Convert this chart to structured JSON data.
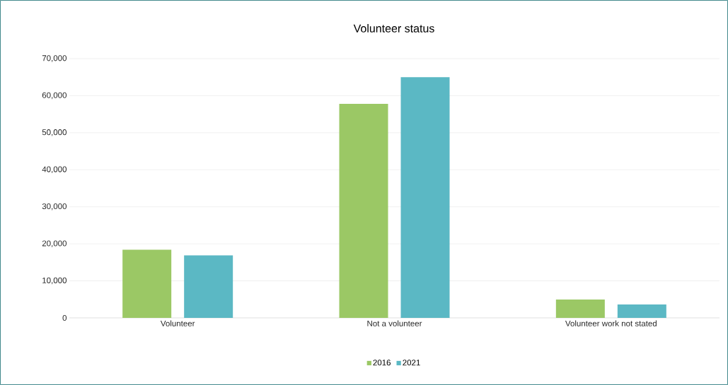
{
  "chart_data": {
    "type": "bar",
    "title": "Volunteer status",
    "categories": [
      "Volunteer",
      "Not a volunteer",
      "Volunteer work not stated"
    ],
    "series": [
      {
        "name": "2016",
        "color": "#9bc865",
        "values": [
          18400,
          57800,
          4950
        ]
      },
      {
        "name": "2021",
        "color": "#5bb8c4",
        "values": [
          16900,
          65000,
          3600
        ]
      }
    ],
    "ylim": [
      0,
      70000
    ],
    "yticks": [
      0,
      {
        "value": 10000,
        "label": "10,000"
      },
      {
        "value": 20000,
        "label": "20,000"
      },
      {
        "value": 30000,
        "label": "30,000"
      },
      {
        "value": 40000,
        "label": "40,000"
      },
      {
        "value": 50000,
        "label": "50,000"
      },
      {
        "value": 60000,
        "label": "60,000"
      },
      {
        "value": 70000,
        "label": "70,000"
      }
    ],
    "grid": "y",
    "legend": "bottom"
  }
}
